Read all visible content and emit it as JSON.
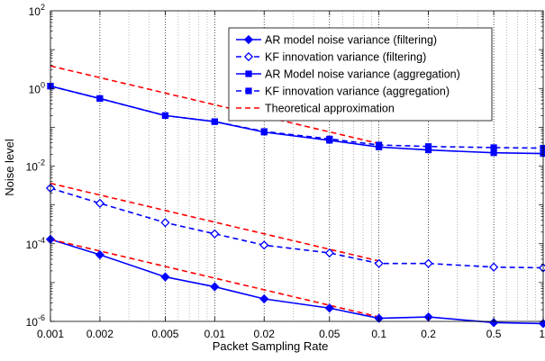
{
  "chart_data": {
    "type": "line",
    "title": "",
    "xlabel": "Packet Sampling Rate",
    "ylabel": "Noise level",
    "x_scale": "log",
    "y_scale": "log",
    "xlim": [
      0.001,
      1
    ],
    "ylim": [
      1e-06,
      100
    ],
    "grid": "x-only dotted",
    "legend_position": "top-right",
    "x": [
      0.001,
      0.002,
      0.005,
      0.01,
      0.02,
      0.05,
      0.1,
      0.2,
      0.5,
      1
    ],
    "x_tick_labels": [
      "0.001",
      "0.002",
      "0.005",
      "0.01",
      "0.02",
      "0.05",
      "0.1",
      "0.2",
      "0.5",
      "1"
    ],
    "y_ticks": [
      {
        "value": 1e-06,
        "base": "10",
        "exp": "-6"
      },
      {
        "value": 0.0001,
        "base": "10",
        "exp": "-4"
      },
      {
        "value": 0.01,
        "base": "10",
        "exp": "-2"
      },
      {
        "value": 1,
        "base": "10",
        "exp": "0"
      },
      {
        "value": 100,
        "base": "10",
        "exp": "2"
      }
    ],
    "series": [
      {
        "name": "AR model noise variance (filtering)",
        "color": "#0000ff",
        "dash": "solid",
        "marker": "diamond-filled",
        "values": [
          0.00013,
          5.2e-05,
          1.4e-05,
          7.8e-06,
          3.8e-06,
          2.2e-06,
          1.2e-06,
          1.3e-06,
          9.3e-07,
          8.8e-07
        ]
      },
      {
        "name": "KF innovation variance  (filtering)",
        "color": "#0000ff",
        "dash": "dashed",
        "marker": "diamond-open",
        "values": [
          0.0027,
          0.0011,
          0.00035,
          0.00018,
          9.2e-05,
          5.8e-05,
          3.1e-05,
          3.1e-05,
          2.5e-05,
          2.4e-05
        ]
      },
      {
        "name": "AR Model noise variance (aggregation)",
        "color": "#0000ff",
        "dash": "solid",
        "marker": "square-filled",
        "values": [
          1.15,
          0.55,
          0.2,
          0.14,
          0.075,
          0.046,
          0.031,
          0.026,
          0.022,
          0.021
        ]
      },
      {
        "name": "KF innovation variance (aggregation)",
        "color": "#0000ff",
        "dash": "dashed",
        "marker": "square-filled",
        "values": [
          1.15,
          0.55,
          0.2,
          0.14,
          0.078,
          0.05,
          0.035,
          0.032,
          0.03,
          0.029
        ]
      },
      {
        "name": "Theoretical approximation",
        "color": "#ff0000",
        "dash": "dashed",
        "marker": "none",
        "segments": [
          {
            "x": [
              0.001,
              0.1
            ],
            "y": [
              3.8,
              0.038
            ]
          },
          {
            "x": [
              0.001,
              0.1
            ],
            "y": [
              0.0036,
              3.6e-05
            ]
          },
          {
            "x": [
              0.001,
              0.1
            ],
            "y": [
              0.00013,
              1.3e-06
            ]
          }
        ]
      }
    ]
  }
}
